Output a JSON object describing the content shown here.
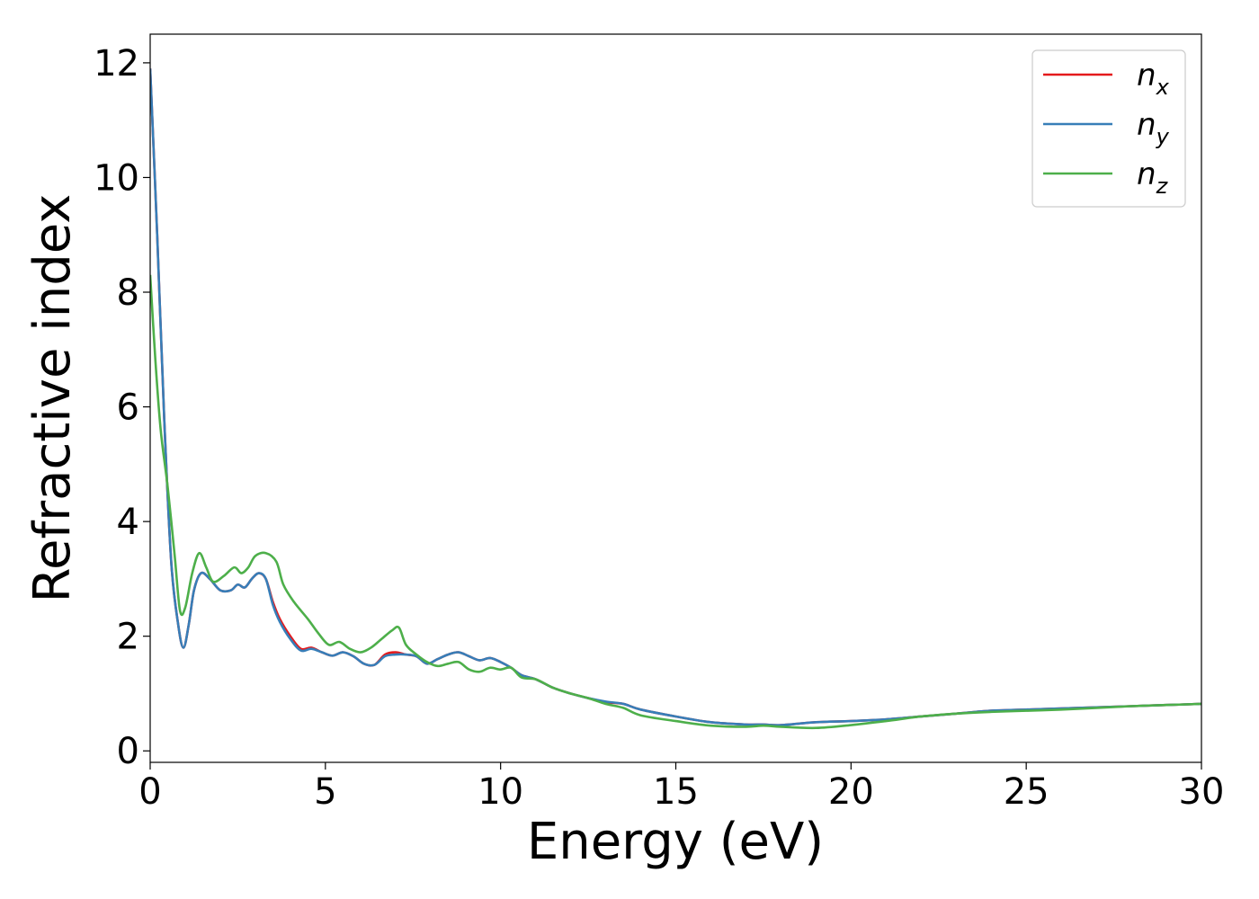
{
  "chart_data": {
    "type": "line",
    "xlabel": "Energy (eV)",
    "ylabel": "Refractive index",
    "xlim": [
      0,
      30
    ],
    "ylim": [
      -0.2,
      12.5
    ],
    "xticks": [
      0,
      5,
      10,
      15,
      20,
      25,
      30
    ],
    "yticks": [
      0,
      2,
      4,
      6,
      8,
      10,
      12
    ],
    "grid": false,
    "legend_position": "top-right",
    "series": [
      {
        "name": "n",
        "subscript": "x",
        "color": "#e41a1c",
        "x": [
          0,
          0.2,
          0.4,
          0.6,
          0.8,
          0.95,
          1.1,
          1.25,
          1.45,
          1.7,
          2.0,
          2.3,
          2.5,
          2.7,
          2.9,
          3.1,
          3.3,
          3.5,
          3.7,
          4.0,
          4.3,
          4.6,
          4.9,
          5.2,
          5.5,
          5.8,
          6.1,
          6.4,
          6.7,
          7.0,
          7.3,
          7.6,
          7.9,
          8.2,
          8.5,
          8.8,
          9.1,
          9.4,
          9.7,
          10.0,
          10.3,
          10.6,
          11.0,
          11.5,
          12.0,
          12.5,
          13.0,
          13.5,
          14.0,
          15.0,
          16.0,
          17.0,
          17.5,
          18.0,
          19.0,
          20.0,
          21.0,
          22.0,
          23.0,
          24.0,
          25.0,
          26.0,
          27.0,
          28.0,
          29.0,
          30.0
        ],
        "values": [
          11.9,
          9.0,
          5.8,
          3.3,
          2.2,
          1.8,
          2.2,
          2.8,
          3.1,
          3.0,
          2.8,
          2.8,
          2.9,
          2.85,
          3.0,
          3.1,
          3.0,
          2.6,
          2.3,
          2.0,
          1.78,
          1.8,
          1.72,
          1.66,
          1.72,
          1.65,
          1.52,
          1.5,
          1.68,
          1.72,
          1.68,
          1.65,
          1.52,
          1.6,
          1.68,
          1.72,
          1.65,
          1.58,
          1.62,
          1.55,
          1.45,
          1.32,
          1.25,
          1.1,
          1.0,
          0.92,
          0.85,
          0.82,
          0.72,
          0.6,
          0.5,
          0.46,
          0.46,
          0.45,
          0.5,
          0.52,
          0.55,
          0.6,
          0.65,
          0.7,
          0.72,
          0.74,
          0.76,
          0.78,
          0.8,
          0.82
        ]
      },
      {
        "name": "n",
        "subscript": "y",
        "color": "#377eb8",
        "x": [
          0,
          0.2,
          0.4,
          0.6,
          0.8,
          0.95,
          1.1,
          1.25,
          1.45,
          1.7,
          2.0,
          2.3,
          2.5,
          2.7,
          2.9,
          3.1,
          3.3,
          3.5,
          3.7,
          4.0,
          4.3,
          4.6,
          4.9,
          5.2,
          5.5,
          5.8,
          6.1,
          6.4,
          6.7,
          7.0,
          7.3,
          7.6,
          7.9,
          8.2,
          8.5,
          8.8,
          9.1,
          9.4,
          9.7,
          10.0,
          10.3,
          10.6,
          11.0,
          11.5,
          12.0,
          12.5,
          13.0,
          13.5,
          14.0,
          15.0,
          16.0,
          17.0,
          17.5,
          18.0,
          19.0,
          20.0,
          21.0,
          22.0,
          23.0,
          24.0,
          25.0,
          26.0,
          27.0,
          28.0,
          29.0,
          30.0
        ],
        "values": [
          11.9,
          9.0,
          5.8,
          3.3,
          2.2,
          1.8,
          2.2,
          2.8,
          3.1,
          3.0,
          2.8,
          2.8,
          2.9,
          2.85,
          3.0,
          3.1,
          3.0,
          2.55,
          2.25,
          1.95,
          1.75,
          1.78,
          1.72,
          1.66,
          1.72,
          1.65,
          1.52,
          1.5,
          1.65,
          1.68,
          1.68,
          1.65,
          1.52,
          1.6,
          1.68,
          1.72,
          1.65,
          1.58,
          1.62,
          1.55,
          1.45,
          1.32,
          1.25,
          1.1,
          1.0,
          0.92,
          0.86,
          0.82,
          0.72,
          0.6,
          0.5,
          0.46,
          0.46,
          0.45,
          0.5,
          0.52,
          0.55,
          0.6,
          0.65,
          0.7,
          0.72,
          0.74,
          0.76,
          0.78,
          0.8,
          0.82
        ]
      },
      {
        "name": "n",
        "subscript": "z",
        "color": "#4daf4a",
        "x": [
          0,
          0.15,
          0.3,
          0.5,
          0.7,
          0.85,
          1.0,
          1.2,
          1.4,
          1.6,
          1.8,
          2.1,
          2.4,
          2.6,
          2.8,
          3.0,
          3.3,
          3.6,
          3.8,
          4.1,
          4.5,
          4.8,
          5.1,
          5.4,
          5.7,
          6.0,
          6.3,
          6.6,
          6.9,
          7.1,
          7.3,
          7.6,
          7.9,
          8.2,
          8.5,
          8.8,
          9.1,
          9.4,
          9.7,
          10.0,
          10.3,
          10.6,
          11.0,
          11.5,
          12.0,
          12.5,
          13.0,
          13.5,
          14.0,
          15.0,
          16.0,
          17.0,
          17.5,
          18.0,
          19.0,
          20.0,
          21.0,
          22.0,
          23.0,
          24.0,
          25.0,
          26.0,
          27.0,
          28.0,
          29.0,
          30.0
        ],
        "values": [
          8.3,
          6.8,
          5.6,
          4.6,
          3.4,
          2.45,
          2.5,
          3.1,
          3.45,
          3.2,
          2.95,
          3.05,
          3.2,
          3.1,
          3.2,
          3.4,
          3.45,
          3.3,
          2.9,
          2.6,
          2.3,
          2.05,
          1.85,
          1.9,
          1.78,
          1.72,
          1.8,
          1.95,
          2.1,
          2.15,
          1.85,
          1.68,
          1.55,
          1.48,
          1.52,
          1.55,
          1.42,
          1.38,
          1.45,
          1.42,
          1.45,
          1.28,
          1.25,
          1.1,
          1.0,
          0.92,
          0.82,
          0.75,
          0.62,
          0.52,
          0.44,
          0.42,
          0.44,
          0.42,
          0.4,
          0.45,
          0.52,
          0.6,
          0.65,
          0.68,
          0.7,
          0.72,
          0.75,
          0.78,
          0.8,
          0.82
        ]
      }
    ]
  }
}
